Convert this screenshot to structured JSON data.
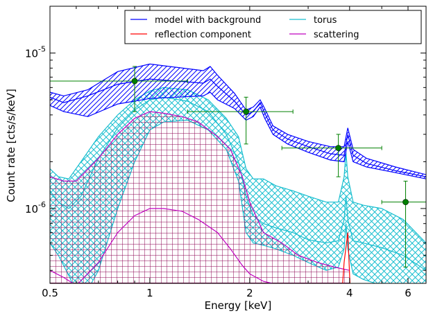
{
  "chart_data": {
    "type": "line",
    "xlabel": "Energy [keV]",
    "ylabel": "Count rate [cts/s/keV]",
    "xscale": "log",
    "yscale": "log",
    "xlim": [
      0.5,
      6.8
    ],
    "ylim": [
      3.3e-07,
      2e-05
    ],
    "x_ticks": [
      0.5,
      1,
      2,
      4,
      6
    ],
    "x_tick_labels": [
      "0.5",
      "1",
      "2",
      "4",
      "6"
    ],
    "y_ticks": [
      1e-06,
      1e-05
    ],
    "legend": {
      "placement": "top-right",
      "columns": 2,
      "entries": [
        {
          "label": "model with background",
          "color": "#0000ff"
        },
        {
          "label": "torus",
          "color": "#17becf"
        },
        {
          "label": "reflection component",
          "color": "#ff0000"
        },
        {
          "label": "scattering",
          "color": "#bf00bf"
        }
      ]
    },
    "series": [
      {
        "name": "model with background",
        "color": "#0000ff",
        "hatch": "diagonal",
        "x": [
          0.5,
          0.55,
          0.65,
          0.8,
          1.0,
          1.2,
          1.45,
          1.52,
          1.6,
          1.8,
          1.95,
          2.05,
          2.15,
          2.22,
          2.35,
          2.6,
          3.0,
          3.5,
          3.85,
          3.95,
          4.1,
          4.5,
          5.5,
          6.8
        ],
        "upper": [
          5.6e-06,
          5.3e-06,
          5.8e-06,
          7.6e-06,
          8.5e-06,
          8.1e-06,
          7.7e-06,
          8.2e-06,
          7.2e-06,
          5.5e-06,
          4.3e-06,
          4.5e-06,
          5e-06,
          4.4e-06,
          3.4e-06,
          3e-06,
          2.7e-06,
          2.5e-06,
          2.5e-06,
          3.3e-06,
          2.4e-06,
          2.1e-06,
          1.85e-06,
          1.65e-06
        ],
        "middle": [
          5.2e-06,
          4.8e-06,
          5.3e-06,
          6.3e-06,
          6.8e-06,
          6.6e-06,
          6.4e-06,
          6.8e-06,
          6.1e-06,
          4.9e-06,
          4e-06,
          4.2e-06,
          4.8e-06,
          4.1e-06,
          3.2e-06,
          2.8e-06,
          2.5e-06,
          2.25e-06,
          2.2e-06,
          3e-06,
          2.2e-06,
          1.95e-06,
          1.75e-06,
          1.6e-06
        ],
        "lower": [
          4.6e-06,
          4.2e-06,
          3.9e-06,
          4.7e-06,
          5.1e-06,
          5.2e-06,
          5.3e-06,
          5.6e-06,
          5e-06,
          4.4e-06,
          3.7e-06,
          3.9e-06,
          4.5e-06,
          3.8e-06,
          3e-06,
          2.6e-06,
          2.3e-06,
          2.05e-06,
          2e-06,
          2.7e-06,
          2e-06,
          1.85e-06,
          1.7e-06,
          1.55e-06
        ]
      },
      {
        "name": "torus",
        "color": "#17becf",
        "hatch": "cross",
        "x": [
          0.5,
          0.53,
          0.57,
          0.62,
          0.7,
          0.8,
          0.9,
          1.0,
          1.1,
          1.3,
          1.5,
          1.7,
          1.85,
          1.95,
          2.05,
          2.2,
          2.4,
          2.7,
          3.0,
          3.4,
          3.7,
          3.85,
          3.9,
          3.95,
          4.1,
          4.4,
          5.0,
          5.8,
          6.8
        ],
        "upper": [
          1.8e-06,
          1.6e-06,
          1.55e-06,
          2e-06,
          2.9e-06,
          4e-06,
          5e-06,
          5.7e-06,
          6e-06,
          5.8e-06,
          5e-06,
          3.8e-06,
          2.9e-06,
          1.8e-06,
          1.55e-06,
          1.55e-06,
          1.4e-06,
          1.3e-06,
          1.2e-06,
          1.1e-06,
          1.1e-06,
          1.6e-06,
          2.3e-06,
          1.6e-06,
          1.1e-06,
          1.05e-06,
          1e-06,
          8.5e-07,
          6e-07
        ],
        "middle": [
          1.3e-06,
          1.1e-06,
          1e-06,
          1.2e-06,
          2.1e-06,
          3.3e-06,
          4.3e-06,
          5e-06,
          5.2e-06,
          4.9e-06,
          4.2e-06,
          3e-06,
          2e-06,
          1.2e-06,
          9e-07,
          8e-07,
          7.5e-07,
          7e-07,
          6.3e-07,
          6e-07,
          6.2e-07,
          8.5e-07,
          1.2e-06,
          8.5e-07,
          6.2e-07,
          6e-07,
          5.6e-07,
          5e-07,
          4e-07
        ],
        "lower": [
          6e-07,
          5e-07,
          3.7e-07,
          2.5e-07,
          4e-07,
          1e-06,
          2e-06,
          3.2e-06,
          3.6e-06,
          3.7e-06,
          3.2e-06,
          2.4e-06,
          1.5e-06,
          7e-07,
          6e-07,
          5.8e-07,
          5.5e-07,
          5e-07,
          4.5e-07,
          4e-07,
          4.2e-07,
          5.5e-07,
          8e-07,
          5.5e-07,
          3.8e-07,
          3.5e-07,
          3.2e-07,
          2.9e-07,
          2.6e-07
        ]
      },
      {
        "name": "scattering",
        "color": "#bf00bf",
        "hatch": "grid",
        "x": [
          0.5,
          0.55,
          0.6,
          0.7,
          0.8,
          0.9,
          1.0,
          1.1,
          1.25,
          1.4,
          1.6,
          1.75,
          1.9,
          2.0,
          2.2,
          2.5,
          2.8,
          3.2,
          3.6,
          4.0
        ],
        "upper": [
          1.6e-06,
          1.5e-06,
          1.5e-06,
          2.1e-06,
          3e-06,
          3.8e-06,
          4.2e-06,
          4.1e-06,
          3.9e-06,
          3.6e-06,
          2.9e-06,
          2.4e-06,
          1.6e-06,
          1.1e-06,
          7e-07,
          6e-07,
          5e-07,
          4.5e-07,
          4.2e-07,
          4e-07
        ],
        "middle": [
          4e-07,
          3.6e-07,
          3.2e-07,
          4.5e-07,
          7e-07,
          9e-07,
          1e-06,
          1e-06,
          9.6e-07,
          8.5e-07,
          7e-07,
          5.5e-07,
          4.3e-07,
          3.8e-07,
          3.4e-07,
          3.2e-07,
          3.1e-07,
          3e-07,
          2.9e-07,
          2.8e-07
        ],
        "lower": [
          2e-07,
          2e-07,
          2e-07,
          2e-07,
          2e-07,
          2e-07,
          2e-07,
          2e-07,
          2e-07,
          2e-07,
          2e-07,
          2e-07,
          2e-07,
          2e-07,
          2e-07,
          2e-07,
          2e-07,
          2e-07,
          2e-07,
          2e-07
        ]
      },
      {
        "name": "reflection component",
        "color": "#ff0000",
        "x": [
          3.75,
          3.85,
          3.95,
          4.05
        ],
        "y": [
          2e-07,
          4.5e-07,
          7e-07,
          2e-07
        ]
      }
    ],
    "data_points": {
      "color": "#008000",
      "points": [
        {
          "x": 0.9,
          "y": 6.6e-06,
          "xerr": [
            0.5,
            1.3
          ],
          "yerr": [
            4.2e-06,
            8.2e-06
          ]
        },
        {
          "x": 1.95,
          "y": 4.2e-06,
          "xerr": [
            1.3,
            2.7
          ],
          "yerr": [
            2.6e-06,
            5.2e-06
          ]
        },
        {
          "x": 3.7,
          "y": 2.45e-06,
          "xerr": [
            2.5,
            5.0
          ],
          "yerr": [
            1.6e-06,
            3e-06
          ]
        },
        {
          "x": 5.9,
          "y": 1.1e-06,
          "xerr": [
            5.0,
            6.8
          ],
          "yerr": [
            4.2e-07,
            1.5e-06
          ]
        }
      ]
    }
  }
}
